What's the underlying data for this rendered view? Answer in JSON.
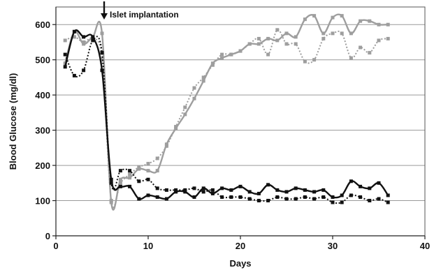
{
  "chart_data": {
    "type": "line",
    "title": "",
    "xlabel": "Days",
    "ylabel": "Blood Glucose (mg/dl)",
    "xlim": [
      0,
      40
    ],
    "ylim": [
      0,
      650
    ],
    "x_ticks": [
      0,
      10,
      20,
      30,
      40
    ],
    "y_ticks": [
      0,
      100,
      200,
      300,
      400,
      500,
      600
    ],
    "grid": "horizontal",
    "annotation": {
      "text": "Islet implantation",
      "x": 5
    },
    "series": [
      {
        "color": "#9e9e9e",
        "line_style": "solid",
        "marker": "square",
        "x": [
          1,
          2,
          3,
          4,
          5,
          6,
          7,
          8,
          9,
          10,
          11,
          12,
          13,
          14,
          15,
          16,
          17,
          18,
          19,
          20,
          21,
          22,
          23,
          24,
          25,
          26,
          27,
          28,
          29,
          30,
          31,
          32,
          33,
          34,
          35,
          36
        ],
        "y": [
          490,
          580,
          545,
          565,
          575,
          95,
          160,
          165,
          190,
          185,
          185,
          260,
          305,
          345,
          390,
          440,
          490,
          505,
          515,
          525,
          545,
          545,
          560,
          555,
          575,
          565,
          615,
          625,
          575,
          620,
          625,
          575,
          610,
          610,
          600,
          600
        ]
      },
      {
        "color": "#9e9e9e",
        "line_style": "dotted",
        "marker": "square",
        "x": [
          1,
          2,
          3,
          4,
          5,
          6,
          7,
          8,
          9,
          10,
          11,
          12,
          13,
          14,
          15,
          16,
          17,
          18,
          19,
          20,
          21,
          22,
          23,
          24,
          25,
          26,
          27,
          28,
          29,
          30,
          31,
          32,
          33,
          34,
          35,
          36
        ],
        "y": [
          555,
          565,
          550,
          560,
          500,
          100,
          150,
          175,
          195,
          205,
          220,
          255,
          310,
          365,
          420,
          450,
          485,
          515,
          515,
          525,
          545,
          560,
          515,
          585,
          545,
          545,
          495,
          500,
          560,
          575,
          575,
          505,
          535,
          520,
          555,
          560
        ]
      },
      {
        "color": "#111111",
        "line_style": "solid",
        "marker": "square",
        "x": [
          1,
          2,
          3,
          4,
          5,
          6,
          7,
          8,
          9,
          10,
          11,
          12,
          13,
          14,
          15,
          16,
          17,
          18,
          19,
          20,
          21,
          22,
          23,
          24,
          25,
          26,
          27,
          28,
          29,
          30,
          31,
          32,
          33,
          34,
          35,
          36
        ],
        "y": [
          480,
          580,
          565,
          565,
          470,
          160,
          140,
          140,
          105,
          115,
          110,
          105,
          125,
          125,
          110,
          135,
          120,
          135,
          130,
          140,
          125,
          120,
          145,
          130,
          125,
          135,
          130,
          125,
          130,
          110,
          115,
          155,
          140,
          135,
          150,
          115
        ]
      },
      {
        "color": "#111111",
        "line_style": "dotted",
        "marker": "square",
        "x": [
          1,
          2,
          3,
          4,
          5,
          6,
          7,
          8,
          9,
          10,
          11,
          12,
          13,
          14,
          15,
          16,
          17,
          18,
          19,
          20,
          21,
          22,
          23,
          24,
          25,
          26,
          27,
          28,
          29,
          30,
          31,
          32,
          33,
          34,
          35,
          36
        ],
        "y": [
          515,
          455,
          470,
          555,
          520,
          150,
          185,
          185,
          155,
          160,
          135,
          130,
          130,
          130,
          135,
          125,
          130,
          110,
          110,
          110,
          105,
          100,
          100,
          110,
          105,
          105,
          110,
          105,
          110,
          95,
          95,
          115,
          110,
          100,
          105,
          95
        ]
      }
    ]
  }
}
